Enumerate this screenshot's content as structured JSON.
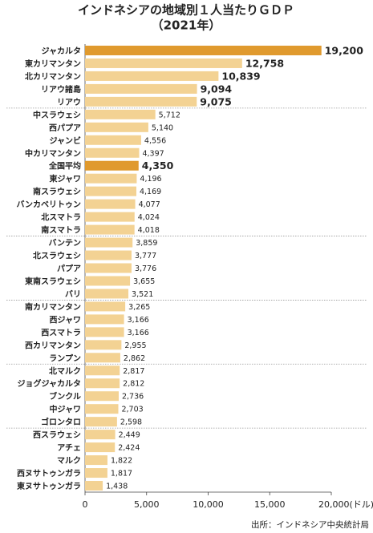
{
  "chart_data": {
    "type": "bar",
    "orientation": "horizontal",
    "title": "インドネシアの地域別１人当たりＧＤＰ",
    "subtitle": "（2021年）",
    "source": "出所：インドネシア中央統計局",
    "categories": [
      "ジャカルタ",
      "東カリマンタン",
      "北カリマンタン",
      "リアウ諸島",
      "リアウ",
      "中スラウェシ",
      "西パプア",
      "ジャンビ",
      "中カリマンタン",
      "全国平均",
      "東ジャワ",
      "南スラウェシ",
      "バンカベリトゥン",
      "北スマトラ",
      "南スマトラ",
      "バンテン",
      "北スラウェシ",
      "パプア",
      "東南スラウェシ",
      "バリ",
      "南カリマンタン",
      "西ジャワ",
      "西スマトラ",
      "西カリマンタン",
      "ランプン",
      "北マルク",
      "ジョグジャカルタ",
      "ブンクル",
      "中ジャワ",
      "ゴロンタロ",
      "西スラウェシ",
      "アチェ",
      "マルク",
      "西ヌサトゥンガラ",
      "東ヌサトゥンガラ"
    ],
    "values": [
      19200,
      12758,
      10839,
      9094,
      9075,
      5712,
      5140,
      4556,
      4397,
      4350,
      4196,
      4169,
      4077,
      4024,
      4018,
      3859,
      3777,
      3776,
      3655,
      3521,
      3265,
      3166,
      3166,
      2955,
      2862,
      2817,
      2812,
      2736,
      2703,
      2598,
      2449,
      2424,
      1822,
      1817,
      1438
    ],
    "value_labels": [
      "19,200",
      "12,758",
      "10,839",
      "9,094",
      "9,075",
      "5,712",
      "5,140",
      "4,556",
      "4,397",
      "4,350",
      "4,196",
      "4,169",
      "4,077",
      "4,024",
      "4,018",
      "3,859",
      "3,777",
      "3,776",
      "3,655",
      "3,521",
      "3,265",
      "3,166",
      "3,166",
      "2,955",
      "2,862",
      "2,817",
      "2,812",
      "2,736",
      "2,703",
      "2,598",
      "2,449",
      "2,424",
      "1,822",
      "1,817",
      "1,438"
    ],
    "colors": [
      "#e09a2e",
      "#f3d293",
      "#f3d293",
      "#f3d293",
      "#f3d293",
      "#f3d293",
      "#f3d293",
      "#f3d293",
      "#f3d293",
      "#e09a2e",
      "#f3d293",
      "#f3d293",
      "#f3d293",
      "#f3d293",
      "#f3d293",
      "#f3d293",
      "#f3d293",
      "#f3d293",
      "#f3d293",
      "#f3d293",
      "#f3d293",
      "#f3d293",
      "#f3d293",
      "#f3d293",
      "#f3d293",
      "#f3d293",
      "#f3d293",
      "#f3d293",
      "#f3d293",
      "#f3d293",
      "#f3d293",
      "#f3d293",
      "#f3d293",
      "#f3d293",
      "#f3d293"
    ],
    "xlim": [
      0,
      20000
    ],
    "xticks": [
      0,
      {
        "value": 5000,
        "label": "5,000"
      },
      {
        "value": 10000,
        "label": "10,000"
      },
      {
        "value": 15000,
        "label": "15,000"
      },
      {
        "value": 20000,
        "label": "20,000(ドル)"
      }
    ]
  }
}
